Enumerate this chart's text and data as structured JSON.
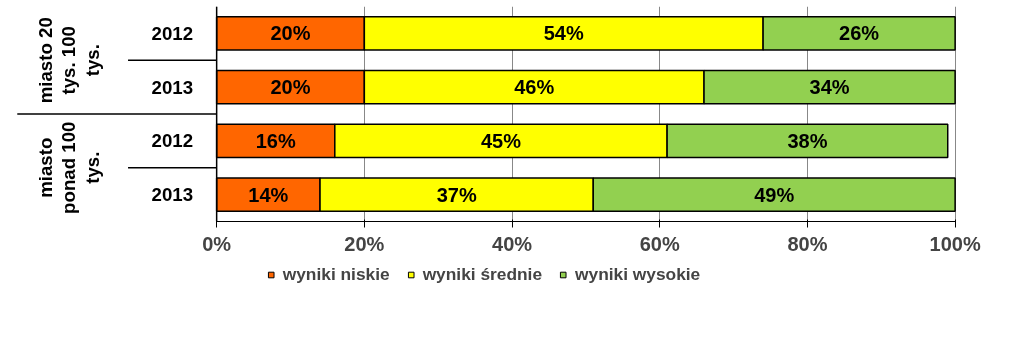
{
  "chart_data": {
    "type": "bar",
    "orientation": "horizontal",
    "stacked": true,
    "categories": [
      "2012",
      "2013",
      "2012",
      "2013"
    ],
    "annotations": [
      "miasto 20 tys. 100 tys.",
      "miasto ponad 100 tys."
    ],
    "series": [
      {
        "name": "wyniki niskie",
        "color": "#ff6600",
        "values": [
          20,
          20,
          16,
          14
        ],
        "value_labels": [
          "20%",
          "20%",
          "16%",
          "14%"
        ]
      },
      {
        "name": "wyniki średnie",
        "color": "#ffff00",
        "values": [
          54,
          46,
          45,
          37
        ],
        "value_labels": [
          "54%",
          "46%",
          "45%",
          "37%"
        ]
      },
      {
        "name": "wyniki wysokie",
        "color": "#92d050",
        "values": [
          26,
          34,
          38,
          49
        ],
        "value_labels": [
          "26%",
          "34%",
          "38%",
          "49%"
        ]
      }
    ],
    "xlim": [
      0,
      100
    ],
    "xticks": [
      {
        "value": 0,
        "label": "0%"
      },
      {
        "value": 20,
        "label": "20%"
      },
      {
        "value": 40,
        "label": "40%"
      },
      {
        "value": 60,
        "label": "60%"
      },
      {
        "value": 80,
        "label": "80%"
      },
      {
        "value": 100,
        "label": "100%"
      }
    ],
    "grid": "x",
    "legend": "bottom"
  }
}
